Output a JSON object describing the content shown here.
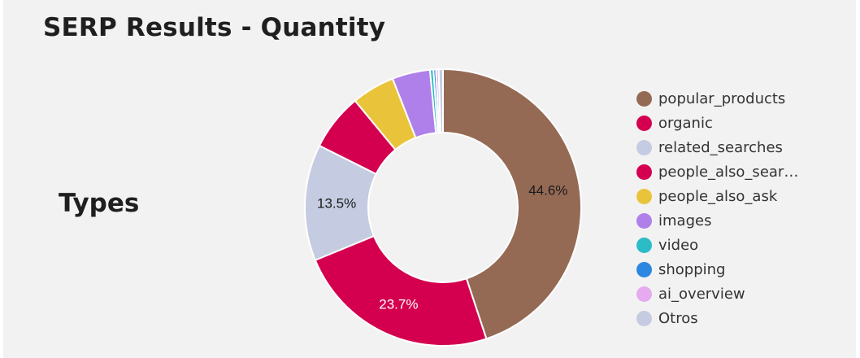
{
  "page": {
    "title": "SERP Results - Quantity",
    "section_label": "Types"
  },
  "chart_data": {
    "type": "pie",
    "donut": true,
    "series": [
      {
        "name": "popular_products",
        "value": 44.6,
        "color": "#946a55",
        "label": "44.6%",
        "label_color": "#1a1a1a"
      },
      {
        "name": "organic",
        "value": 23.7,
        "color": "#d4004f",
        "label": "23.7%",
        "label_color": "#ffffff"
      },
      {
        "name": "related_searches",
        "value": 13.5,
        "color": "#c5cce1",
        "label": "13.5%",
        "label_color": "#1a1a1a"
      },
      {
        "name": "people_also_sear…",
        "value": 6.6,
        "color": "#d4004f",
        "label": "",
        "label_color": "#ffffff"
      },
      {
        "name": "people_also_ask",
        "value": 5.0,
        "color": "#e9c43b",
        "label": "",
        "label_color": "#1a1a1a"
      },
      {
        "name": "images",
        "value": 4.4,
        "color": "#af80ea",
        "label": "",
        "label_color": "#1a1a1a"
      },
      {
        "name": "video",
        "value": 0.4,
        "color": "#2cbcc7",
        "label": "",
        "label_color": "#1a1a1a"
      },
      {
        "name": "shopping",
        "value": 0.3,
        "color": "#2d86e0",
        "label": "",
        "label_color": "#1a1a1a"
      },
      {
        "name": "ai_overview",
        "value": 0.3,
        "color": "#e5aaf0",
        "label": "",
        "label_color": "#1a1a1a"
      },
      {
        "name": "Otros",
        "value": 0.5,
        "color": "#c5cce1",
        "label": "",
        "label_color": "#1a1a1a"
      }
    ],
    "legend_position": "right"
  }
}
